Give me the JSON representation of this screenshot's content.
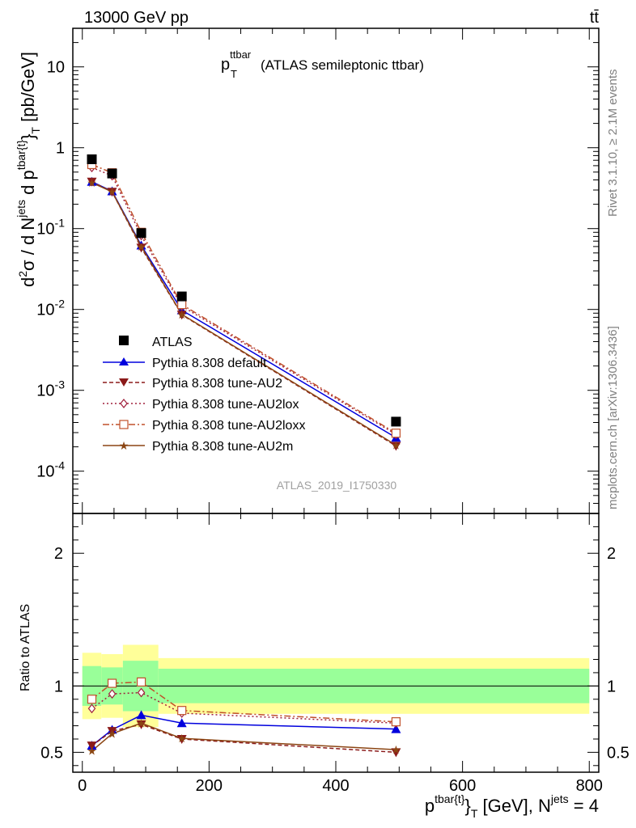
{
  "header": {
    "left": "13000 GeV pp",
    "right": "tt̄"
  },
  "side_labels": {
    "rivet": "Rivet 3.1.10, ≥ 2.1M events",
    "mcplots": "mcplots.cern.ch [arXiv:1306.3436]"
  },
  "plot_title": {
    "main": "p",
    "sup": "ttbar",
    "sub": "T",
    "rest": " (ATLAS semileptonic ttbar)"
  },
  "watermark": "ATLAS_2019_I1750330",
  "ylabel_top": "d²σ / d N^jets d p^tbar{t}_T [pb/GeV]",
  "ylabel_bottom": "Ratio to ATLAS",
  "xlabel": "p^tbar{t}_T [GeV], N^jets = 4",
  "colors": {
    "data": "#000000",
    "default": "#0000dd",
    "au2": "#8b1a1a",
    "au2lox": "#a0203c",
    "au2loxx": "#c0502a",
    "au2m": "#8b4513",
    "band_inner": "#99ff99",
    "band_outer": "#ffff99"
  },
  "chart_data": [
    {
      "type": "line",
      "ylog": true,
      "xlim": [
        -15,
        815
      ],
      "ylim": [
        3e-05,
        30
      ],
      "ytick_labels": [
        "10",
        "1",
        "10^-1",
        "10^-2",
        "10^-3",
        "10^-4"
      ],
      "x": [
        15,
        47,
        93,
        157,
        495
      ],
      "data": {
        "name": "ATLAS",
        "values": [
          0.72,
          0.48,
          0.088,
          0.0145,
          0.00041
        ]
      },
      "series": [
        {
          "key": "default",
          "name": "Pythia 8.308 default",
          "marker": "triangle-up",
          "dash": "",
          "values": [
            0.38,
            0.29,
            0.062,
            0.0098,
            0.00026
          ]
        },
        {
          "key": "au2",
          "name": "Pythia 8.308 tune-AU2",
          "marker": "triangle-down",
          "dash": "5,3",
          "values": [
            0.38,
            0.285,
            0.058,
            0.0086,
            0.000205
          ]
        },
        {
          "key": "au2lox",
          "name": "Pythia 8.308 tune-AU2lox",
          "marker": "diamond-open",
          "dash": "2,3",
          "values": [
            0.57,
            0.45,
            0.082,
            0.011,
            0.000285
          ]
        },
        {
          "key": "au2loxx",
          "name": "Pythia 8.308 tune-AU2loxx",
          "marker": "square-open",
          "dash": "8,3,2,3",
          "values": [
            0.62,
            0.49,
            0.09,
            0.0115,
            0.000295
          ]
        },
        {
          "key": "au2m",
          "name": "Pythia 8.308 tune-AU2m",
          "marker": "star",
          "dash": "",
          "values": [
            0.37,
            0.285,
            0.06,
            0.0087,
            0.00021
          ]
        }
      ]
    },
    {
      "type": "line",
      "xlim": [
        -15,
        815
      ],
      "ylim": [
        0.35,
        2.3
      ],
      "yticks": [
        0.5,
        1,
        2
      ],
      "ytick_labels": [
        "0.5",
        "1",
        "2"
      ],
      "xticks": [
        0,
        200,
        400,
        600,
        800
      ],
      "xtick_labels": [
        "0",
        "200",
        "400",
        "600",
        "800"
      ],
      "band_bins": [
        [
          0,
          30,
          0.85,
          1.15,
          0.75,
          1.25
        ],
        [
          30,
          64,
          0.86,
          1.14,
          0.76,
          1.24
        ],
        [
          64,
          120,
          0.81,
          1.19,
          0.69,
          1.31
        ],
        [
          120,
          800,
          0.87,
          1.13,
          0.79,
          1.21
        ]
      ],
      "series": [
        {
          "key": "default",
          "values": [
            0.55,
            0.67,
            0.78,
            0.72,
            0.675
          ]
        },
        {
          "key": "au2",
          "values": [
            0.55,
            0.66,
            0.71,
            0.6,
            0.5
          ]
        },
        {
          "key": "au2lox",
          "values": [
            0.83,
            0.94,
            0.95,
            0.795,
            0.72
          ]
        },
        {
          "key": "au2loxx",
          "values": [
            0.9,
            1.02,
            1.03,
            0.815,
            0.73
          ]
        },
        {
          "key": "au2m",
          "values": [
            0.51,
            0.64,
            0.72,
            0.605,
            0.52
          ]
        }
      ]
    }
  ]
}
